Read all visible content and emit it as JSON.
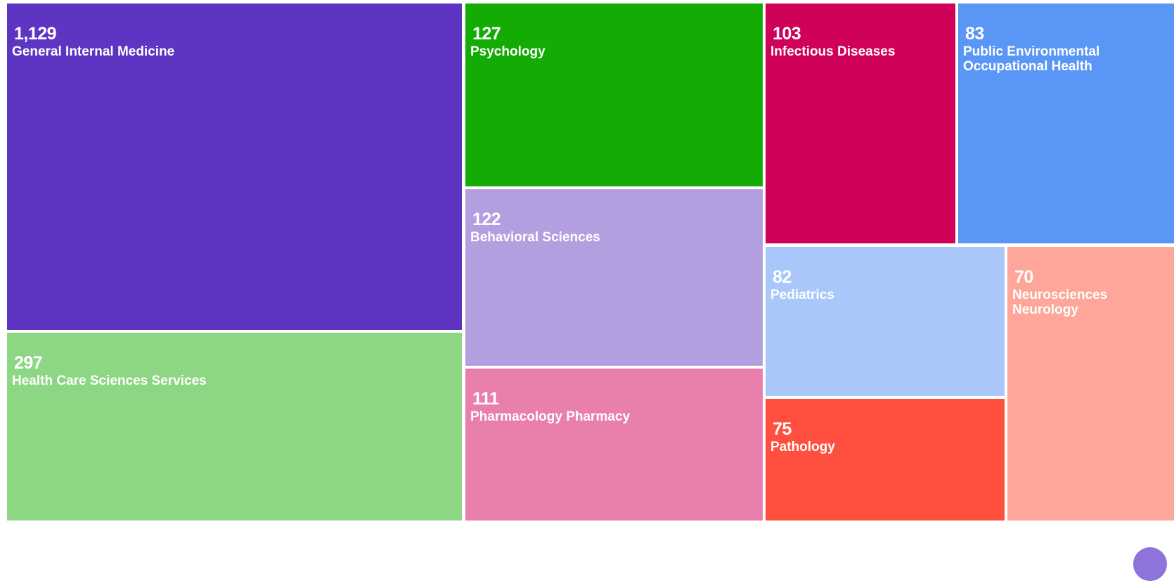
{
  "chart_data": {
    "type": "treemap",
    "title": "",
    "items": [
      {
        "value": 1129,
        "value_label": "1,129",
        "label": "General Internal Medicine",
        "color": "#5e35c3"
      },
      {
        "value": 297,
        "value_label": "297",
        "label": "Health Care Sciences Services",
        "color": "#8dd683"
      },
      {
        "value": 127,
        "value_label": "127",
        "label": "Psychology",
        "color": "#14ab04"
      },
      {
        "value": 122,
        "value_label": "122",
        "label": "Behavioral Sciences",
        "color": "#b39fe0"
      },
      {
        "value": 111,
        "value_label": "111",
        "label": "Pharmacology Pharmacy",
        "color": "#e87fac"
      },
      {
        "value": 103,
        "value_label": "103",
        "label": "Infectious Diseases",
        "color": "#d00158"
      },
      {
        "value": 83,
        "value_label": "83",
        "label": "Public Environmental Occupational Health",
        "color": "#5996f5"
      },
      {
        "value": 82,
        "value_label": "82",
        "label": "Pediatrics",
        "color": "#a9c7f8"
      },
      {
        "value": 75,
        "value_label": "75",
        "label": "Pathology",
        "color": "#ff4f3f"
      },
      {
        "value": 70,
        "value_label": "70",
        "label": "Neurosciences Neurology",
        "color": "#ffa69a"
      }
    ]
  }
}
